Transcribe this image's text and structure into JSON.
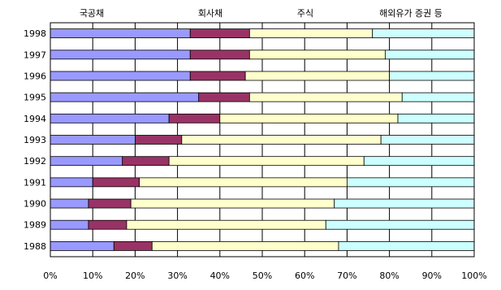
{
  "chart_data": {
    "type": "bar",
    "orientation": "horizontal",
    "stacked": "percent",
    "categories": [
      "1998",
      "1997",
      "1996",
      "1995",
      "1994",
      "1993",
      "1992",
      "1991",
      "1990",
      "1989",
      "1988"
    ],
    "series": [
      {
        "name": "국공채",
        "color": "#9999ff",
        "values": [
          33,
          33,
          33,
          35,
          28,
          20,
          17,
          10,
          9,
          9,
          15
        ]
      },
      {
        "name": "회사채",
        "color": "#993366",
        "values": [
          14,
          14,
          13,
          12,
          12,
          11,
          11,
          11,
          10,
          9,
          9
        ]
      },
      {
        "name": "주식",
        "color": "#ffffcc",
        "values": [
          29,
          32,
          34,
          36,
          42,
          47,
          46,
          49,
          48,
          47,
          44
        ]
      },
      {
        "name": "해외유가 증권 등",
        "color": "#ccffff",
        "values": [
          24,
          21,
          20,
          17,
          18,
          22,
          26,
          30,
          33,
          35,
          32
        ]
      }
    ],
    "xticks": [
      "0%",
      "10%",
      "20%",
      "30%",
      "40%",
      "50%",
      "60%",
      "70%",
      "80%",
      "90%",
      "100%"
    ],
    "xlim": [
      0,
      100
    ],
    "legend_position": "top",
    "grid": "vertical"
  }
}
